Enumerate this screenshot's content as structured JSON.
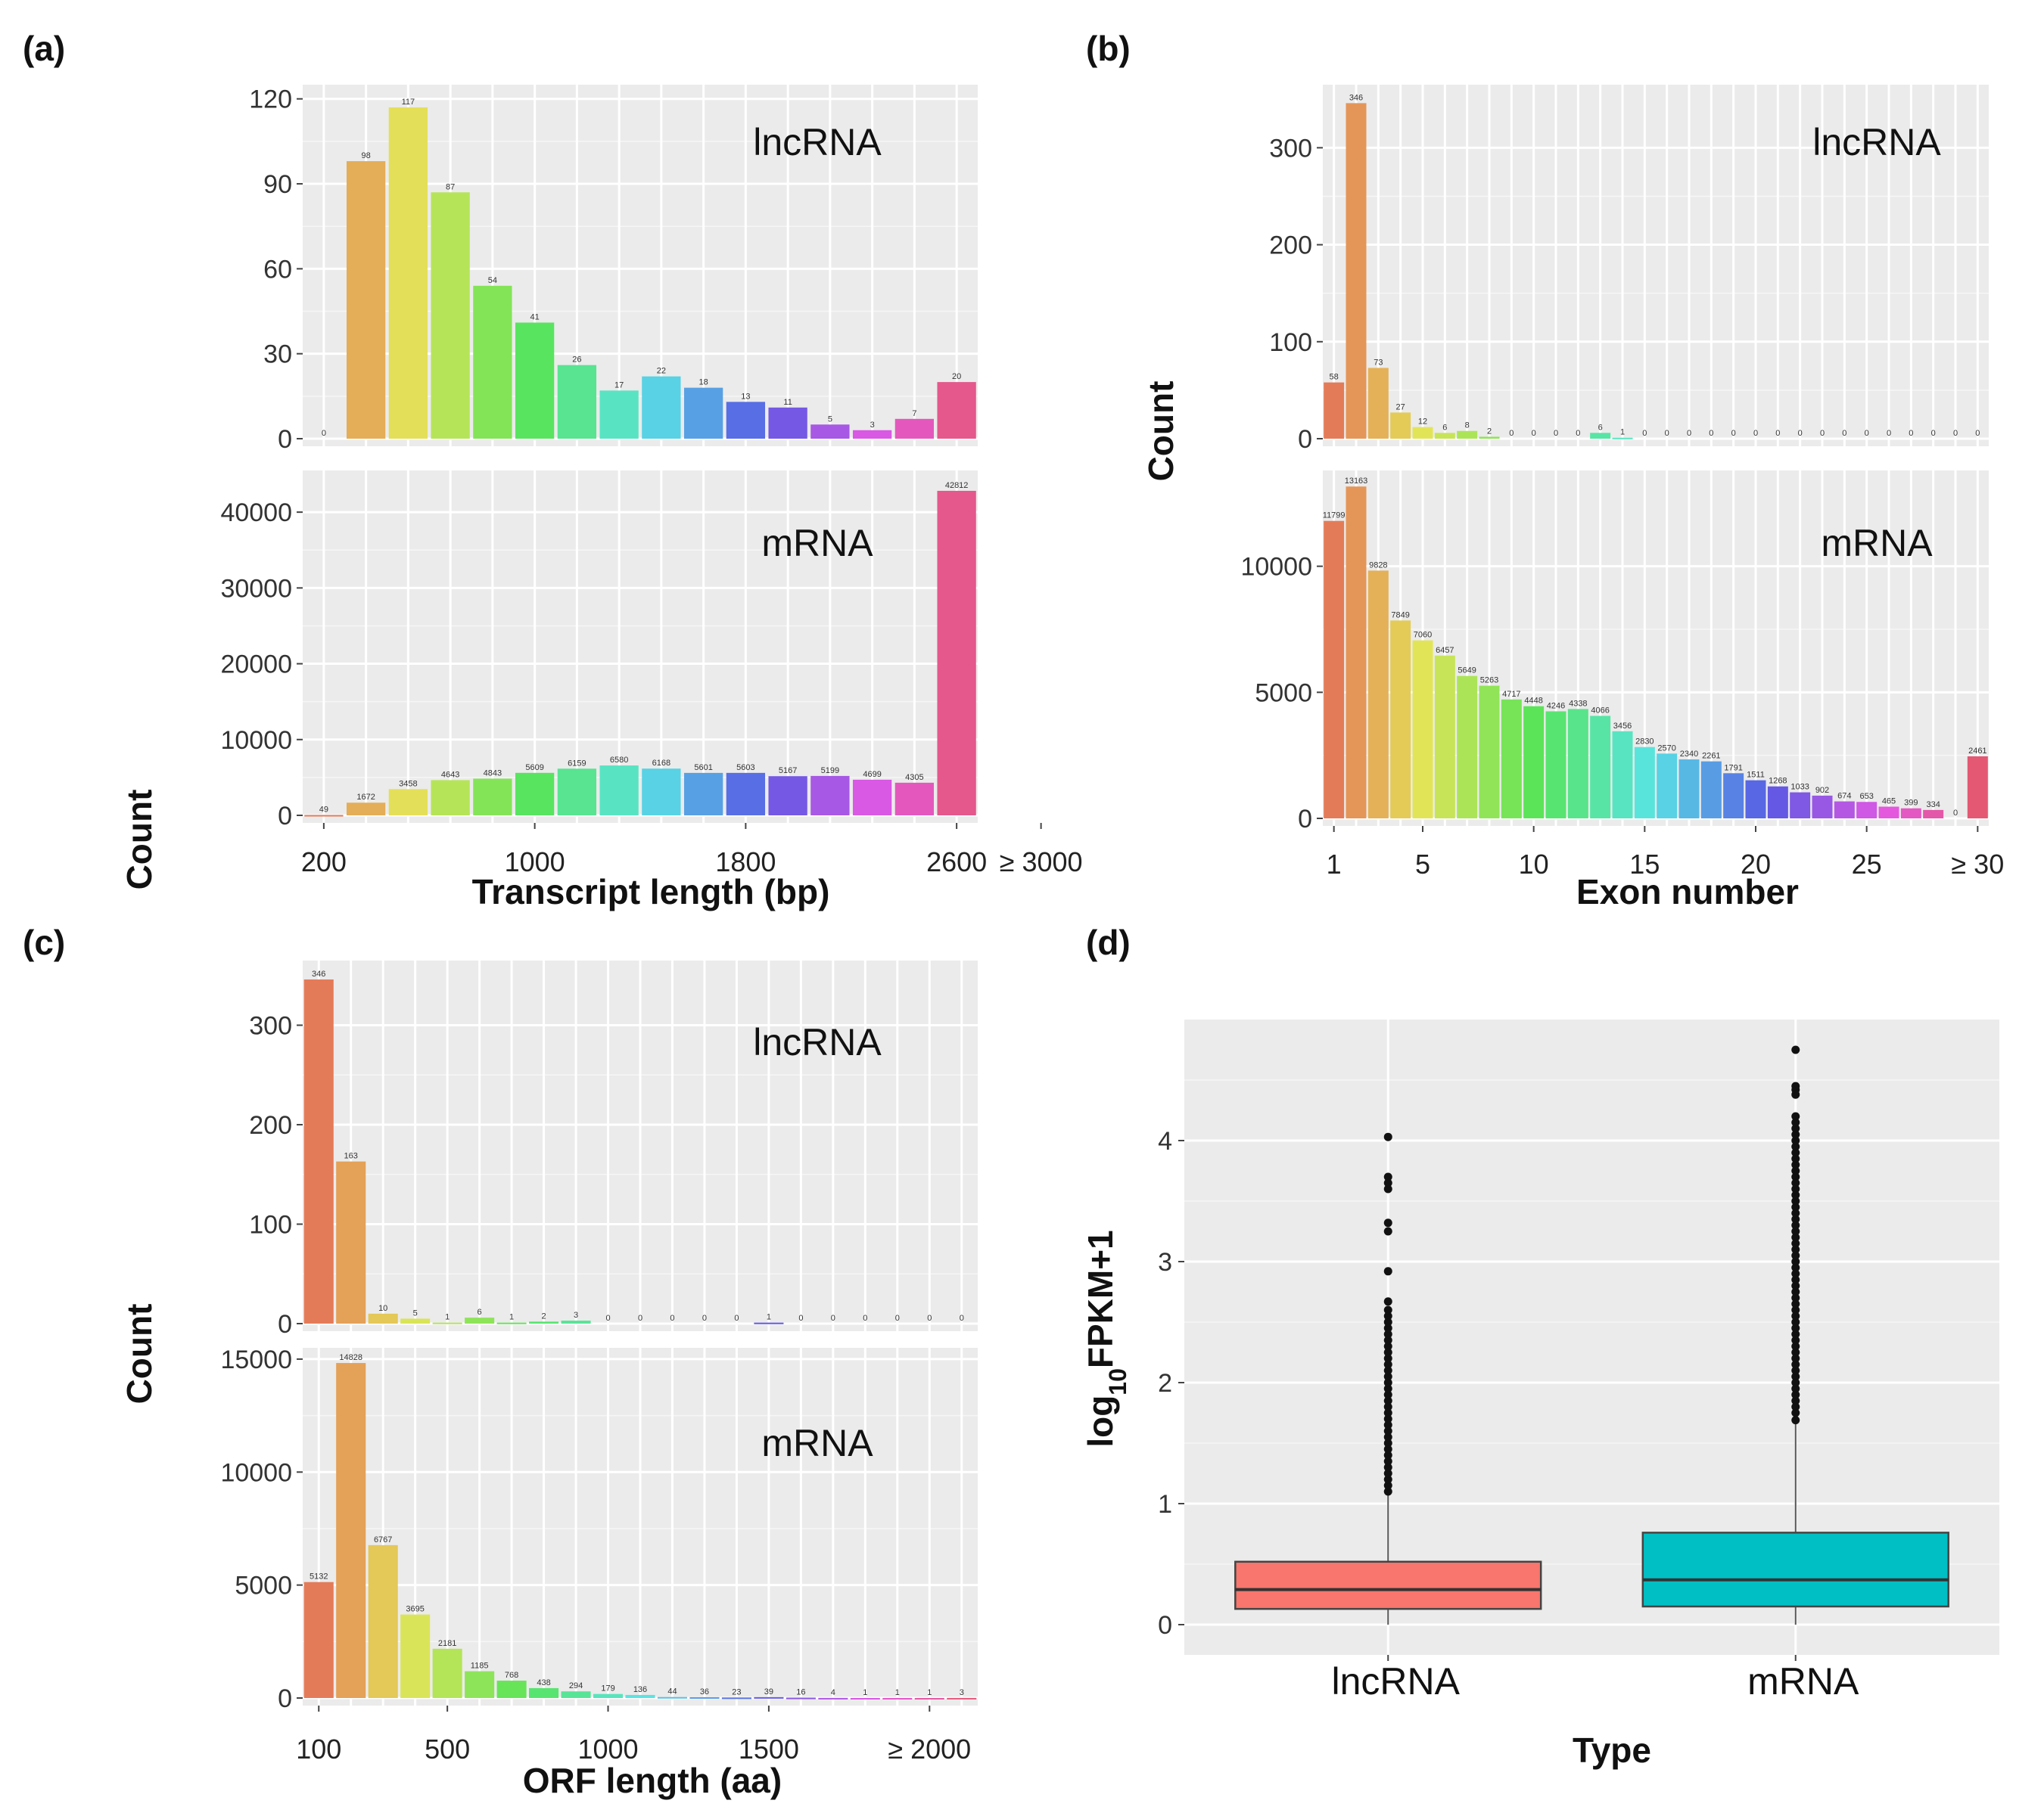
{
  "figure_labels": {
    "a": "(a)",
    "b": "(b)",
    "c": "(c)",
    "d": "(d)"
  },
  "chart_data": [
    {
      "id": "a",
      "type": "bar",
      "ylabel": "Count",
      "xlabel": "Transcript length (bp)",
      "x_tick_labels": [
        "200",
        "1000",
        "1800",
        "2600",
        "≥ 3000"
      ],
      "x_tick_categories": [
        0,
        5,
        10,
        15,
        17
      ],
      "facets": [
        {
          "name": "lncRNA",
          "ylim": [
            0,
            125
          ],
          "yticks": [
            0,
            30,
            60,
            90,
            120
          ],
          "values": [
            0,
            98,
            117,
            87,
            54,
            41,
            26,
            17,
            22,
            18,
            13,
            11,
            5,
            3,
            7,
            20
          ]
        },
        {
          "name": "mRNA",
          "ylim": [
            0,
            45500
          ],
          "yticks": [
            0,
            10000,
            20000,
            30000,
            40000
          ],
          "values": [
            49,
            1672,
            3458,
            4643,
            4843,
            5609,
            6159,
            6580,
            6168,
            5601,
            5603,
            5167,
            5199,
            4699,
            4305,
            42812
          ]
        }
      ]
    },
    {
      "id": "b",
      "type": "bar",
      "ylabel": "Count",
      "xlabel": "Exon number",
      "x_tick_labels": [
        "1",
        "5",
        "10",
        "15",
        "20",
        "25",
        "≥ 30"
      ],
      "x_tick_categories": [
        1,
        5,
        10,
        15,
        20,
        25,
        30
      ],
      "facets": [
        {
          "name": "lncRNA",
          "ylim": [
            0,
            365
          ],
          "yticks": [
            0,
            100,
            200,
            300
          ],
          "values": [
            58,
            346,
            73,
            27,
            12,
            6,
            8,
            2,
            0,
            0,
            0,
            0,
            6,
            1,
            0,
            0,
            0,
            0,
            0,
            0,
            0,
            0,
            0,
            0,
            0,
            0,
            0,
            0,
            0,
            0
          ]
        },
        {
          "name": "mRNA",
          "ylim": [
            0,
            13800
          ],
          "yticks": [
            0,
            5000,
            10000
          ],
          "values": [
            11799,
            13163,
            9828,
            7849,
            7060,
            6457,
            5649,
            5263,
            4717,
            4448,
            4246,
            4338,
            4066,
            3456,
            2830,
            2570,
            2340,
            2261,
            1791,
            1511,
            1268,
            1033,
            902,
            674,
            653,
            465,
            399,
            334,
            0,
            2461
          ]
        }
      ]
    },
    {
      "id": "c",
      "type": "bar",
      "ylabel": "Count",
      "xlabel": "ORF length (aa)",
      "x_tick_labels": [
        "100",
        "500",
        "1000",
        "1500",
        "≥ 2000"
      ],
      "x_tick_categories": [
        1,
        5,
        10,
        15,
        20
      ],
      "facets": [
        {
          "name": "lncRNA",
          "ylim": [
            0,
            365
          ],
          "yticks": [
            0,
            100,
            200,
            300
          ],
          "values": [
            346,
            163,
            10,
            5,
            1,
            6,
            1,
            2,
            3,
            0,
            0,
            0,
            0,
            0,
            1,
            0,
            0,
            0,
            0,
            0,
            0
          ]
        },
        {
          "name": "mRNA",
          "ylim": [
            0,
            15500
          ],
          "yticks": [
            0,
            5000,
            10000,
            15000
          ],
          "values": [
            5132,
            14828,
            6767,
            3695,
            2181,
            1185,
            768,
            438,
            294,
            179,
            136,
            44,
            36,
            23,
            39,
            16,
            4,
            1,
            1,
            1,
            3
          ]
        }
      ]
    },
    {
      "id": "d",
      "type": "boxplot",
      "xlabel": "Type",
      "ylabel": "log10FPKM+1",
      "ylabel_parts": {
        "pre": "log",
        "sub": "10",
        "post": "FPKM+1"
      },
      "ylim": [
        -0.25,
        5.0
      ],
      "yticks": [
        0,
        1,
        2,
        3,
        4
      ],
      "categories": [
        "lncRNA",
        "mRNA"
      ],
      "colors": [
        "#f8766d",
        "#00bfc4"
      ],
      "boxes": [
        {
          "name": "lncRNA",
          "lower_whisker": 0,
          "q1": 0.13,
          "median": 0.29,
          "q3": 0.52,
          "upper_whisker": 1.1,
          "outliers": [
            1.1,
            1.15,
            1.2,
            1.25,
            1.3,
            1.35,
            1.4,
            1.45,
            1.5,
            1.55,
            1.6,
            1.65,
            1.7,
            1.75,
            1.8,
            1.85,
            1.9,
            1.95,
            2.0,
            2.05,
            2.1,
            2.15,
            2.2,
            2.25,
            2.3,
            2.35,
            2.4,
            2.45,
            2.5,
            2.55,
            2.6,
            2.67,
            2.92,
            3.25,
            3.32,
            3.6,
            3.65,
            3.7,
            4.03
          ]
        },
        {
          "name": "mRNA",
          "lower_whisker": 0,
          "q1": 0.15,
          "median": 0.37,
          "q3": 0.76,
          "upper_whisker": 1.69,
          "outliers": [
            1.69,
            1.75,
            1.8,
            1.85,
            1.9,
            1.95,
            2.0,
            2.05,
            2.1,
            2.15,
            2.2,
            2.25,
            2.3,
            2.35,
            2.4,
            2.45,
            2.5,
            2.55,
            2.6,
            2.65,
            2.7,
            2.75,
            2.8,
            2.85,
            2.9,
            2.95,
            3.0,
            3.05,
            3.1,
            3.15,
            3.2,
            3.25,
            3.3,
            3.35,
            3.4,
            3.45,
            3.5,
            3.55,
            3.6,
            3.65,
            3.7,
            3.75,
            3.8,
            3.85,
            3.9,
            3.95,
            4.0,
            4.05,
            4.1,
            4.15,
            4.2,
            4.38,
            4.42,
            4.45,
            4.75
          ]
        }
      ]
    }
  ]
}
